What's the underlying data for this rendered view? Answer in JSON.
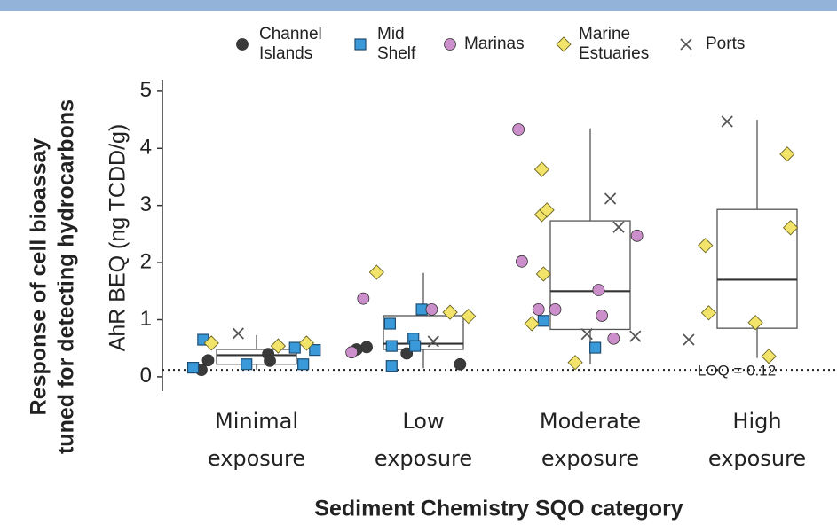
{
  "chart_data": {
    "type": "box",
    "title_lines": [
      "Response of cell bioassay",
      "tuned for detecting hydrocarbons"
    ],
    "x_label": "Sediment Chemistry SQO category",
    "y_label": "AhR BEQ (ng TCDD/g)",
    "categories": [
      [
        "Minimal",
        "exposure"
      ],
      [
        "Low",
        "exposure"
      ],
      [
        "Moderate",
        "exposure"
      ],
      [
        "High",
        "exposure"
      ]
    ],
    "xlim": [
      -0.5,
      3.5
    ],
    "ylim": [
      -0.25,
      5.2
    ],
    "yticks": [
      0,
      1,
      2,
      3,
      4,
      5
    ],
    "boxes": [
      {
        "min": 0.12,
        "q1": 0.22,
        "median": 0.38,
        "q3": 0.48,
        "max": 0.73
      },
      {
        "min": 0.15,
        "q1": 0.48,
        "median": 0.58,
        "q3": 1.07,
        "max": 1.82
      },
      {
        "min": 0.22,
        "q1": 0.83,
        "median": 1.5,
        "q3": 2.73,
        "max": 4.35
      },
      {
        "min": 0.33,
        "q1": 0.85,
        "median": 1.7,
        "q3": 2.93,
        "max": 4.5
      }
    ],
    "loq": {
      "value": 0.12,
      "label": "LOQ = 0.12"
    },
    "series": [
      {
        "name": [
          "Channel",
          "Islands"
        ],
        "marker": "circle",
        "color": "#3a3a3a",
        "x": [
          -0.33,
          -0.29,
          0.07,
          0.08,
          0.6,
          0.66,
          0.9,
          1.22
        ],
        "values": [
          0.12,
          0.29,
          0.4,
          0.28,
          0.48,
          0.52,
          0.41,
          0.22
        ]
      },
      {
        "name": [
          "Mid",
          "Shelf"
        ],
        "marker": "square",
        "color": "#3a9ad9",
        "x": [
          -0.32,
          -0.38,
          -0.06,
          0.23,
          0.28,
          0.35,
          0.99,
          0.8,
          0.81,
          0.81,
          0.94,
          0.95,
          1.72,
          2.03
        ],
        "values": [
          0.65,
          0.16,
          0.22,
          0.51,
          0.22,
          0.47,
          1.18,
          0.93,
          0.54,
          0.19,
          0.67,
          0.54,
          0.98,
          0.51
        ]
      },
      {
        "name": [
          "Marinas"
        ],
        "marker": "circle",
        "color": "#cc8fcc",
        "x": [
          0.64,
          0.57,
          1.05,
          1.57,
          1.59,
          1.69,
          1.79,
          2.05,
          2.07,
          2.14,
          2.28
        ],
        "values": [
          1.37,
          0.43,
          1.18,
          4.33,
          2.02,
          1.18,
          1.18,
          1.52,
          1.07,
          0.67,
          2.47
        ]
      },
      {
        "name": [
          "Marine",
          "Estuaries"
        ],
        "marker": "diamond",
        "color": "#f2e46a",
        "x": [
          -0.27,
          0.13,
          0.3,
          0.72,
          1.16,
          1.27,
          1.71,
          1.71,
          1.74,
          1.72,
          1.65,
          1.91,
          2.69,
          2.71,
          2.99,
          3.18,
          3.2,
          3.07
        ],
        "values": [
          0.59,
          0.54,
          0.59,
          1.83,
          1.13,
          1.06,
          3.63,
          2.84,
          2.92,
          1.8,
          0.93,
          0.25,
          2.3,
          1.12,
          0.95,
          3.9,
          2.61,
          0.36
        ]
      },
      {
        "name": [
          "Ports"
        ],
        "marker": "x",
        "color": "#555555",
        "x": [
          -0.11,
          1.06,
          2.12,
          2.17,
          1.98,
          2.27,
          2.59,
          2.82
        ],
        "values": [
          0.76,
          0.62,
          3.12,
          2.62,
          0.75,
          0.71,
          0.65,
          4.47
        ]
      }
    ]
  }
}
